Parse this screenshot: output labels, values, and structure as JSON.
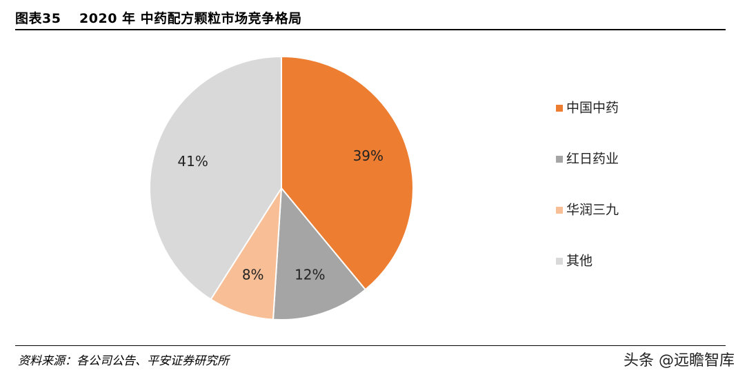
{
  "figure": {
    "title": "图表35　 2020 年 中药配方颗粒市场竞争格局",
    "source": "资料来源：各公司公告、平安证券研究所",
    "watermark": "头条 @远瞻智库"
  },
  "chart_data": {
    "type": "pie",
    "labels": [
      "中国中药",
      "红日药业",
      "华润三九",
      "其他"
    ],
    "values": [
      39,
      12,
      8,
      41
    ],
    "value_labels": [
      "39%",
      "12%",
      "8%",
      "41%"
    ],
    "colors": [
      "#ED7D31",
      "#A5A5A5",
      "#F8BF96",
      "#D9D9D9"
    ],
    "legend_position": "right"
  }
}
